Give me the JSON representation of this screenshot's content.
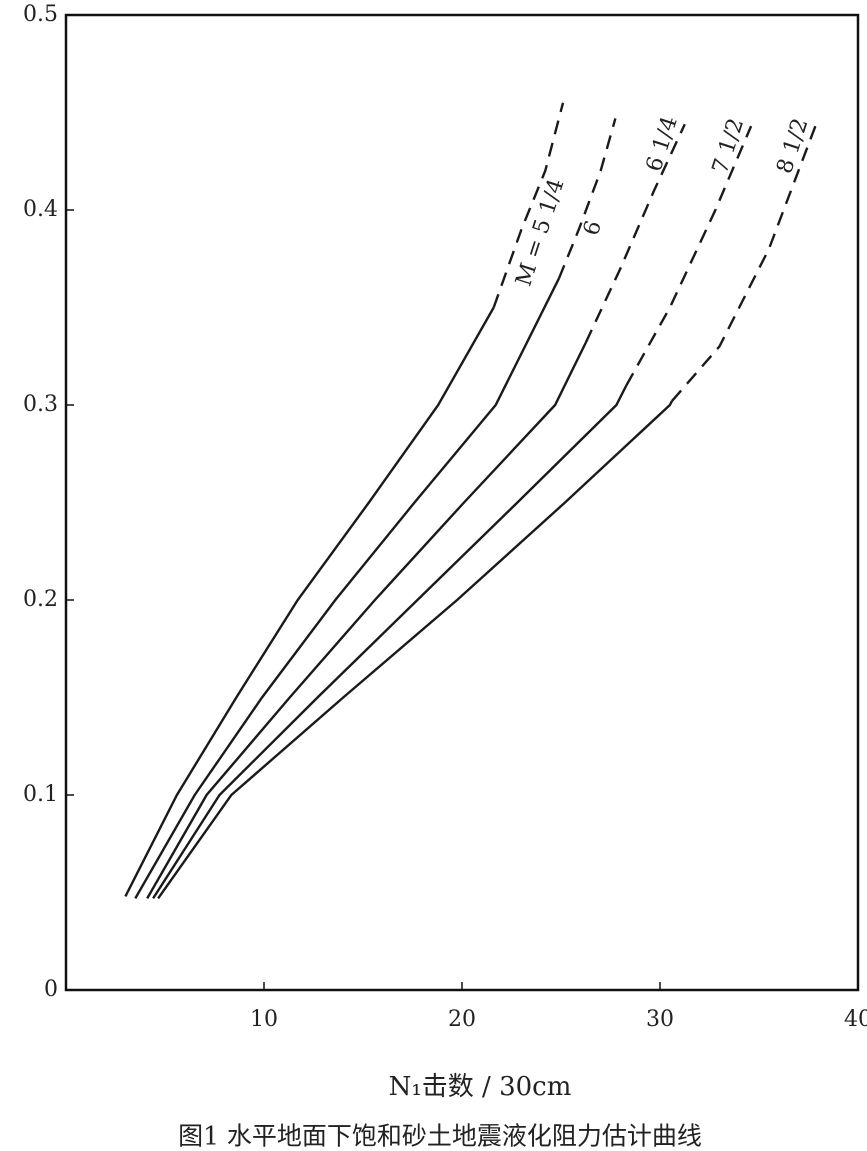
{
  "chart_data": {
    "type": "line",
    "x_label": "N₁击数 / 30cm",
    "caption": "图1 水平地面下饱和砂土地震液化阻力估计曲线",
    "xlim": [
      0,
      40
    ],
    "xticks": [
      10,
      20,
      30,
      40
    ],
    "ylim": [
      0,
      0.5
    ],
    "yticks": [
      0,
      0.1,
      0.2,
      0.3,
      0.4,
      0.5
    ],
    "color": "#1a1a1a",
    "series": [
      {
        "name": "M = 5 1/4",
        "segments": [
          {
            "style": "solid",
            "x": [
              3.0,
              5.6,
              8.6,
              11.7,
              15.3,
              18.8,
              21.6
            ],
            "values": [
              0.048,
              0.1,
              0.15,
              0.2,
              0.25,
              0.3,
              0.35
            ]
          },
          {
            "style": "dashed",
            "x": [
              21.6,
              23.0,
              24.2,
              25.1
            ],
            "values": [
              0.35,
              0.39,
              0.42,
              0.455
            ]
          }
        ]
      },
      {
        "name": "6",
        "segments": [
          {
            "style": "solid",
            "x": [
              3.5,
              6.5,
              9.9,
              13.6,
              17.6,
              21.7,
              24.9
            ],
            "values": [
              0.047,
              0.1,
              0.15,
              0.2,
              0.25,
              0.3,
              0.365
            ]
          },
          {
            "style": "dashed",
            "x": [
              24.9,
              25.9,
              27.0,
              27.75
            ],
            "values": [
              0.365,
              0.39,
              0.42,
              0.447
            ]
          }
        ]
      },
      {
        "name": "6 1/4",
        "segments": [
          {
            "style": "solid",
            "x": [
              4.1,
              7.1,
              11.3,
              15.6,
              20.1,
              24.7,
              26.25
            ],
            "values": [
              0.047,
              0.1,
              0.15,
              0.2,
              0.25,
              0.3,
              0.332
            ]
          },
          {
            "style": "dashed",
            "x": [
              26.25,
              28.0,
              29.7,
              31.25
            ],
            "values": [
              0.332,
              0.37,
              0.41,
              0.444
            ]
          }
        ]
      },
      {
        "name": "7 1/2",
        "segments": [
          {
            "style": "solid",
            "x": [
              4.4,
              7.75,
              12.7,
              17.75,
              22.8,
              27.8,
              28.3
            ],
            "values": [
              0.047,
              0.1,
              0.15,
              0.2,
              0.25,
              0.3,
              0.31
            ]
          },
          {
            "style": "dashed",
            "x": [
              28.3,
              30.5,
              32.8,
              34.6
            ],
            "values": [
              0.31,
              0.35,
              0.4,
              0.443
            ]
          }
        ]
      },
      {
        "name": "8 1/2",
        "segments": [
          {
            "style": "solid",
            "x": [
              4.65,
              8.35,
              14.0,
              19.75,
              25.2,
              30.5,
              30.6
            ],
            "values": [
              0.047,
              0.1,
              0.15,
              0.2,
              0.25,
              0.3,
              0.302
            ]
          },
          {
            "style": "dashed",
            "x": [
              30.6,
              33.0,
              35.5,
              37.85
            ],
            "values": [
              0.302,
              0.33,
              0.38,
              0.443
            ]
          }
        ]
      }
    ]
  }
}
